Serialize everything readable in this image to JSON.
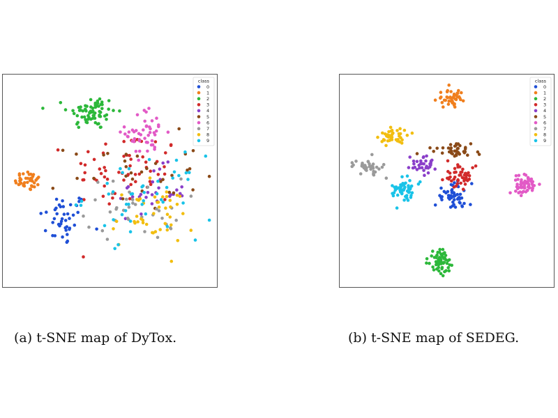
{
  "captions": {
    "a": "(a) t-SNE map of DyTox.",
    "b": "(b) t-SNE map of SEDEG."
  },
  "legend": {
    "title": "class",
    "labels": [
      "0",
      "1",
      "2",
      "3",
      "4",
      "5",
      "6",
      "7",
      "8",
      "9"
    ]
  },
  "class_colors": [
    "#1f4fd6",
    "#f07f1e",
    "#2cb83a",
    "#d12a2a",
    "#8a3fc9",
    "#8a4a18",
    "#e25ac6",
    "#9a9a9a",
    "#f2be10",
    "#19c3e8"
  ],
  "chart_data": [
    {
      "type": "scatter",
      "title": "",
      "caption": "(a) t-SNE map of DyTox.",
      "grid": false,
      "legend_position": "top-right",
      "xlim": [
        0,
        100
      ],
      "ylim": [
        0,
        100
      ],
      "clusters": [
        {
          "class": "0",
          "center": [
            27,
            31
          ],
          "spread": [
            7,
            8
          ],
          "count": 42
        },
        {
          "class": "1",
          "center": [
            10,
            50
          ],
          "spread": [
            4,
            3
          ],
          "count": 38
        },
        {
          "class": "2",
          "center": [
            41,
            84
          ],
          "spread": [
            7,
            5
          ],
          "count": 70
        },
        {
          "class": "3",
          "center": [
            58,
            55
          ],
          "spread": [
            16,
            12
          ],
          "count": 62
        },
        {
          "class": "4",
          "center": [
            71,
            45
          ],
          "spread": [
            10,
            7
          ],
          "count": 28
        },
        {
          "class": "5",
          "center": [
            62,
            54
          ],
          "spread": [
            19,
            11
          ],
          "count": 32
        },
        {
          "class": "6",
          "center": [
            68,
            74
          ],
          "spread": [
            6,
            7
          ],
          "count": 48
        },
        {
          "class": "7",
          "center": [
            62,
            36
          ],
          "spread": [
            14,
            9
          ],
          "count": 36
        },
        {
          "class": "8",
          "center": [
            71,
            32
          ],
          "spread": [
            12,
            9
          ],
          "count": 44
        },
        {
          "class": "9",
          "center": [
            66,
            42
          ],
          "spread": [
            17,
            12
          ],
          "count": 46
        }
      ]
    },
    {
      "type": "scatter",
      "title": "",
      "caption": "(b) t-SNE map of SEDEG.",
      "grid": false,
      "legend_position": "top-right",
      "xlim": [
        0,
        100
      ],
      "ylim": [
        0,
        100
      ],
      "clusters": [
        {
          "class": "0",
          "center": [
            53,
            42
          ],
          "spread": [
            5,
            4
          ],
          "count": 52
        },
        {
          "class": "1",
          "center": [
            52,
            91
          ],
          "spread": [
            4,
            2.5
          ],
          "count": 42
        },
        {
          "class": "2",
          "center": [
            47,
            10
          ],
          "spread": [
            3.5,
            3.5
          ],
          "count": 62
        },
        {
          "class": "3",
          "center": [
            56,
            52
          ],
          "spread": [
            5,
            3
          ],
          "count": 46
        },
        {
          "class": "4",
          "center": [
            39,
            58
          ],
          "spread": [
            4,
            2.5
          ],
          "count": 34
        },
        {
          "class": "5",
          "center": [
            53,
            65
          ],
          "spread": [
            8,
            2
          ],
          "count": 40
        },
        {
          "class": "6",
          "center": [
            88,
            48
          ],
          "spread": [
            3.5,
            3
          ],
          "count": 58
        },
        {
          "class": "7",
          "center": [
            11,
            57
          ],
          "spread": [
            4,
            2
          ],
          "count": 38
        },
        {
          "class": "8",
          "center": [
            24,
            72
          ],
          "spread": [
            4,
            3
          ],
          "count": 44
        },
        {
          "class": "9",
          "center": [
            29,
            45
          ],
          "spread": [
            3.5,
            3.5
          ],
          "count": 56
        }
      ]
    }
  ]
}
